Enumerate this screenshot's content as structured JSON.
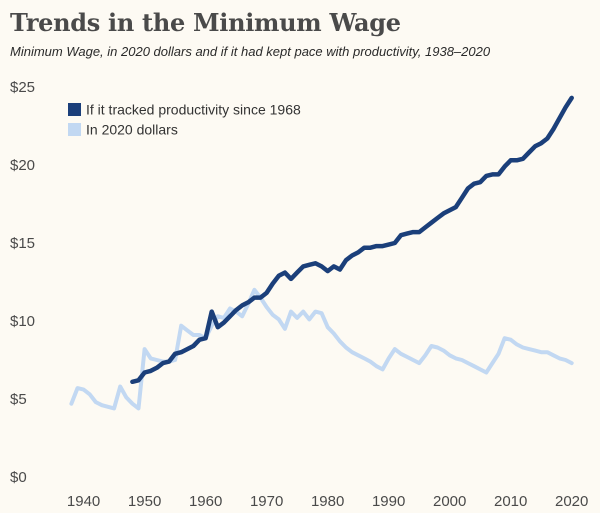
{
  "chart_data": {
    "type": "line",
    "title": "Trends in the Minimum Wage",
    "subtitle": "Minimum Wage, in 2020 dollars and if it had kept pace with productivity, 1938–2020",
    "xlabel": "",
    "ylabel": "",
    "xlim": [
      1934,
      2023
    ],
    "ylim": [
      0,
      25
    ],
    "x_ticks": [
      1940,
      1950,
      1960,
      1970,
      1980,
      1990,
      2000,
      2010,
      2020
    ],
    "x_tick_labels": [
      "1940",
      "1950",
      "1960",
      "1970",
      "1980",
      "1990",
      "2000",
      "2010",
      "2020"
    ],
    "y_ticks": [
      0,
      5,
      10,
      15,
      20,
      25
    ],
    "y_tick_labels": [
      "$0",
      "$5",
      "$10",
      "$15",
      "$20",
      "$25"
    ],
    "grid": false,
    "legend_position": "top-left",
    "series": [
      {
        "name": "If it tracked productivity since 1968",
        "color": "#1b3f7a",
        "points": [
          [
            1948,
            6.1
          ],
          [
            1949,
            6.2
          ],
          [
            1950,
            6.7
          ],
          [
            1951,
            6.8
          ],
          [
            1952,
            7.0
          ],
          [
            1953,
            7.3
          ],
          [
            1954,
            7.4
          ],
          [
            1955,
            7.9
          ],
          [
            1956,
            8.0
          ],
          [
            1957,
            8.2
          ],
          [
            1958,
            8.4
          ],
          [
            1959,
            8.8
          ],
          [
            1960,
            8.9
          ],
          [
            1961,
            10.6
          ],
          [
            1962,
            9.6
          ],
          [
            1963,
            9.9
          ],
          [
            1964,
            10.3
          ],
          [
            1965,
            10.7
          ],
          [
            1966,
            11.0
          ],
          [
            1967,
            11.2
          ],
          [
            1968,
            11.5
          ],
          [
            1969,
            11.5
          ],
          [
            1970,
            11.8
          ],
          [
            1971,
            12.4
          ],
          [
            1972,
            12.9
          ],
          [
            1973,
            13.1
          ],
          [
            1974,
            12.7
          ],
          [
            1975,
            13.1
          ],
          [
            1976,
            13.5
          ],
          [
            1977,
            13.6
          ],
          [
            1978,
            13.7
          ],
          [
            1979,
            13.5
          ],
          [
            1980,
            13.2
          ],
          [
            1981,
            13.5
          ],
          [
            1982,
            13.3
          ],
          [
            1983,
            13.9
          ],
          [
            1984,
            14.2
          ],
          [
            1985,
            14.4
          ],
          [
            1986,
            14.7
          ],
          [
            1987,
            14.7
          ],
          [
            1988,
            14.8
          ],
          [
            1989,
            14.8
          ],
          [
            1990,
            14.9
          ],
          [
            1991,
            15.0
          ],
          [
            1992,
            15.5
          ],
          [
            1993,
            15.6
          ],
          [
            1994,
            15.7
          ],
          [
            1995,
            15.7
          ],
          [
            1996,
            16.0
          ],
          [
            1997,
            16.3
          ],
          [
            1998,
            16.6
          ],
          [
            1999,
            16.9
          ],
          [
            2000,
            17.1
          ],
          [
            2001,
            17.3
          ],
          [
            2002,
            17.9
          ],
          [
            2003,
            18.5
          ],
          [
            2004,
            18.8
          ],
          [
            2005,
            18.9
          ],
          [
            2006,
            19.3
          ],
          [
            2007,
            19.4
          ],
          [
            2008,
            19.4
          ],
          [
            2009,
            19.9
          ],
          [
            2010,
            20.3
          ],
          [
            2011,
            20.3
          ],
          [
            2012,
            20.4
          ],
          [
            2013,
            20.8
          ],
          [
            2014,
            21.2
          ],
          [
            2015,
            21.4
          ],
          [
            2016,
            21.7
          ],
          [
            2017,
            22.3
          ],
          [
            2018,
            23.0
          ],
          [
            2019,
            23.7
          ],
          [
            2020,
            24.3
          ]
        ]
      },
      {
        "name": "In 2020 dollars",
        "color": "#c2d8f2",
        "points": [
          [
            1938,
            4.7
          ],
          [
            1939,
            5.7
          ],
          [
            1940,
            5.6
          ],
          [
            1941,
            5.3
          ],
          [
            1942,
            4.8
          ],
          [
            1943,
            4.6
          ],
          [
            1944,
            4.5
          ],
          [
            1945,
            4.4
          ],
          [
            1946,
            5.8
          ],
          [
            1947,
            5.1
          ],
          [
            1948,
            4.7
          ],
          [
            1949,
            4.4
          ],
          [
            1950,
            8.2
          ],
          [
            1951,
            7.6
          ],
          [
            1952,
            7.5
          ],
          [
            1953,
            7.4
          ],
          [
            1954,
            7.4
          ],
          [
            1955,
            7.5
          ],
          [
            1956,
            9.7
          ],
          [
            1957,
            9.4
          ],
          [
            1958,
            9.1
          ],
          [
            1959,
            9.1
          ],
          [
            1960,
            8.9
          ],
          [
            1961,
            9.7
          ],
          [
            1962,
            10.3
          ],
          [
            1963,
            10.2
          ],
          [
            1964,
            10.8
          ],
          [
            1965,
            10.6
          ],
          [
            1966,
            10.3
          ],
          [
            1967,
            11.1
          ],
          [
            1968,
            12.0
          ],
          [
            1969,
            11.5
          ],
          [
            1970,
            10.9
          ],
          [
            1971,
            10.4
          ],
          [
            1972,
            10.1
          ],
          [
            1973,
            9.5
          ],
          [
            1974,
            10.6
          ],
          [
            1975,
            10.2
          ],
          [
            1976,
            10.6
          ],
          [
            1977,
            10.1
          ],
          [
            1978,
            10.6
          ],
          [
            1979,
            10.5
          ],
          [
            1980,
            9.6
          ],
          [
            1981,
            9.2
          ],
          [
            1982,
            8.7
          ],
          [
            1983,
            8.3
          ],
          [
            1984,
            8.0
          ],
          [
            1985,
            7.8
          ],
          [
            1986,
            7.6
          ],
          [
            1987,
            7.4
          ],
          [
            1988,
            7.1
          ],
          [
            1989,
            6.9
          ],
          [
            1990,
            7.6
          ],
          [
            1991,
            8.2
          ],
          [
            1992,
            7.9
          ],
          [
            1993,
            7.7
          ],
          [
            1994,
            7.5
          ],
          [
            1995,
            7.3
          ],
          [
            1996,
            7.8
          ],
          [
            1997,
            8.4
          ],
          [
            1998,
            8.3
          ],
          [
            1999,
            8.1
          ],
          [
            2000,
            7.8
          ],
          [
            2001,
            7.6
          ],
          [
            2002,
            7.5
          ],
          [
            2003,
            7.3
          ],
          [
            2004,
            7.1
          ],
          [
            2005,
            6.9
          ],
          [
            2006,
            6.7
          ],
          [
            2007,
            7.3
          ],
          [
            2008,
            7.9
          ],
          [
            2009,
            8.9
          ],
          [
            2010,
            8.8
          ],
          [
            2011,
            8.5
          ],
          [
            2012,
            8.3
          ],
          [
            2013,
            8.2
          ],
          [
            2014,
            8.1
          ],
          [
            2015,
            8.0
          ],
          [
            2016,
            8.0
          ],
          [
            2017,
            7.8
          ],
          [
            2018,
            7.6
          ],
          [
            2019,
            7.5
          ],
          [
            2020,
            7.3
          ]
        ]
      }
    ]
  }
}
